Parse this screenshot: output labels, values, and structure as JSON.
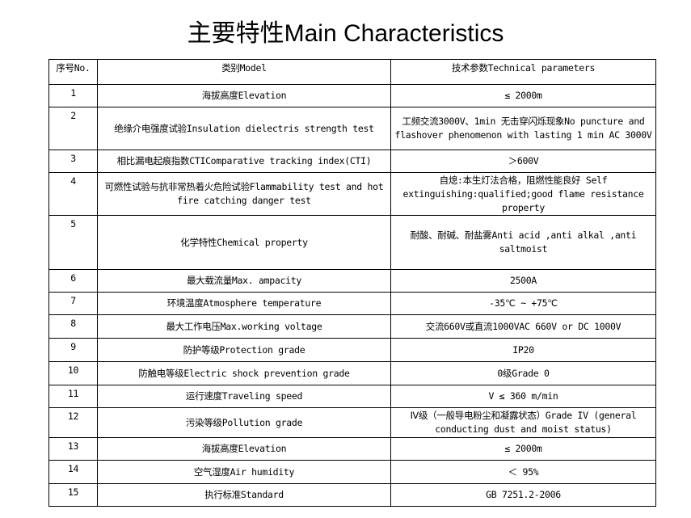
{
  "title": "主要特性Main Characteristics",
  "header": {
    "no": "序号No.",
    "model": "类别Model",
    "params": "技术参数Technical parameters"
  },
  "rows": [
    {
      "no": "1",
      "model": "海拔高度Elevation",
      "value": "≤ 2000m"
    },
    {
      "no": "2",
      "model": "绝缘介电强度试验Insulation dielectris strength test",
      "value": "工频交流3000V、1min 无击穿闪烁现象No puncture and flashover phenomenon with lasting 1 min AC 3000V"
    },
    {
      "no": "3",
      "model": "相比漏电起痕指数CTIComparative tracking index(CTI)",
      "value": "＞600V"
    },
    {
      "no": "4",
      "model": "可燃性试验与抗非常热着火危险试验Flammability test and hot fire catching danger test",
      "value": "自熄:本生灯法合格，阻燃性能良好 Self extinguishing:qualified;good flame resistance property"
    },
    {
      "no": "5",
      "model": "化学特性Chemical property",
      "value": "耐酸、耐碱、耐盐雾Anti acid ,anti alkal ,anti saltmoist"
    },
    {
      "no": "6",
      "model": "最大载流量Max. ampacity",
      "value": "2500A"
    },
    {
      "no": "7",
      "model": "环境温度Atmosphere temperature",
      "value": "-35℃ ~ +75℃"
    },
    {
      "no": "8",
      "model": "最大工作电压Max.working voltage",
      "value": "交流660V或直流1000VAC 660V or DC 1000V"
    },
    {
      "no": "9",
      "model": "防护等级Protection grade",
      "value": "IP20"
    },
    {
      "no": "10",
      "model": "防触电等级Electric shock prevention grade",
      "value": "0级Grade 0"
    },
    {
      "no": "11",
      "model": "运行速度Traveling speed",
      "value": "V ≤ 360 m/min"
    },
    {
      "no": "12",
      "model": "污染等级Pollution grade",
      "value": "Ⅳ级（一般导电粉尘和凝露状态）Grade IV (general conducting dust and moist status)"
    },
    {
      "no": "13",
      "model": "海拔高度Elevation",
      "value": "≤ 2000m"
    },
    {
      "no": "14",
      "model": "空气湿度Air humidity",
      "value": "＜ 95%"
    },
    {
      "no": "15",
      "model": "执行标准Standard",
      "value": "GB 7251.2-2006"
    }
  ]
}
